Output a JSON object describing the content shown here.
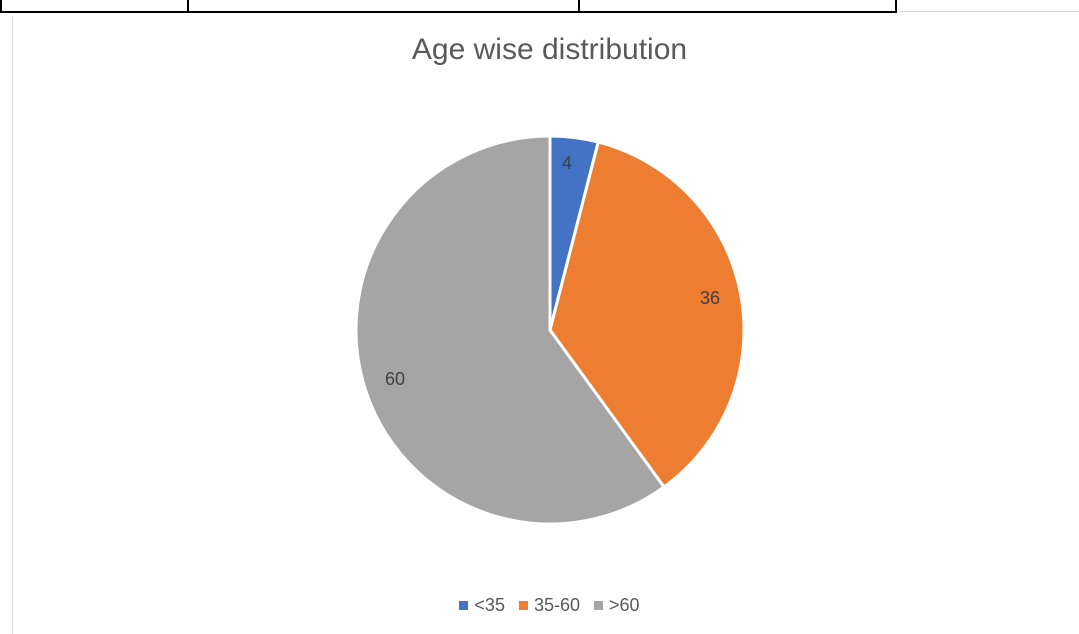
{
  "chart_data": {
    "type": "pie",
    "title": "Age wise distribution",
    "categories": [
      "<35",
      "35-60",
      ">60"
    ],
    "values": [
      4,
      36,
      60
    ],
    "data_labels": [
      "4",
      "36",
      "60"
    ],
    "colors": [
      "#4472c4",
      "#ed7d31",
      "#a5a5a5"
    ],
    "legend_position": "bottom"
  }
}
